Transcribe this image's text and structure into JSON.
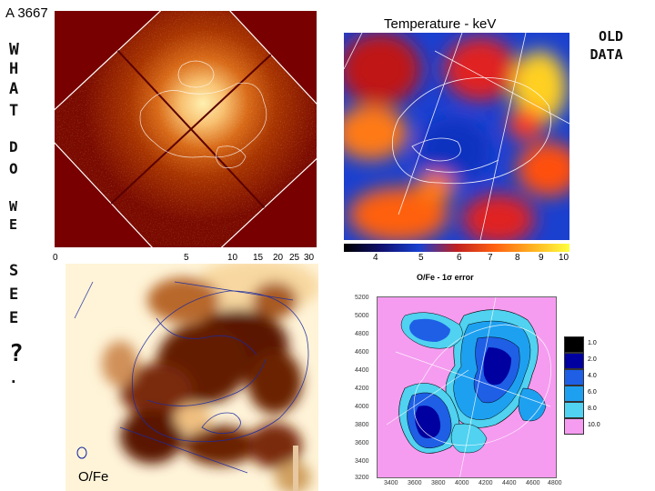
{
  "title": "A 3667",
  "side_note": {
    "lines": [
      "W",
      "H",
      "A",
      "T",
      "D",
      "O",
      "W",
      "E",
      "S",
      "E",
      "E",
      "?",
      "."
    ]
  },
  "corner_note": {
    "line1": "OLD",
    "line2": "DATA"
  },
  "panel_xray": {
    "colorbar_ticks": [
      "0",
      "5",
      "10",
      "15",
      "20",
      "25",
      "30"
    ],
    "colors": {
      "background": "#7a0000",
      "mid": "#c45a10",
      "bright": "#ffe3a0"
    }
  },
  "panel_temperature": {
    "title": "Temperature - keV",
    "colorbar_ticks": [
      "4",
      "5",
      "6",
      "7",
      "8",
      "9",
      "10"
    ]
  },
  "panel_ofe": {
    "label": "O/Fe"
  },
  "panel_error": {
    "title": "O/Fe - 1σ error",
    "y_ticks": [
      "5200",
      "5000",
      "4800",
      "4600",
      "4400",
      "4200",
      "4000",
      "3800",
      "3600",
      "3400",
      "3200"
    ],
    "x_ticks": [
      "3400",
      "3600",
      "3800",
      "4000",
      "4200",
      "4400",
      "4600",
      "4800"
    ],
    "legend": [
      {
        "label": "1.0",
        "color": "#000000"
      },
      {
        "label": "2.0",
        "color": "#0000a0"
      },
      {
        "label": "4.0",
        "color": "#1e5fe6"
      },
      {
        "label": "6.0",
        "color": "#1ea0f0"
      },
      {
        "label": "8.0",
        "color": "#50d2f0"
      },
      {
        "label": "10.0",
        "color": "#f59cf0"
      }
    ]
  }
}
